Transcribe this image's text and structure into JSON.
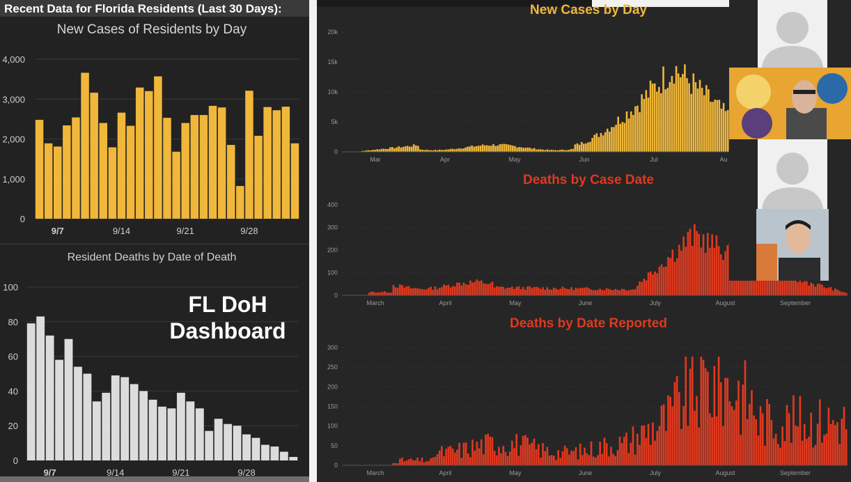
{
  "header": {
    "title": "Recent Data for Florida Residents (Last 30 Days):"
  },
  "overlay_label": {
    "line1": "FL DoH",
    "line2": "Dashboard"
  },
  "colors": {
    "gold": "#f0b73a",
    "light_bar": "#dcdcdc",
    "red": "#e0391f",
    "panel": "#222222"
  },
  "chart_data": [
    {
      "id": "new-cases-residents",
      "type": "bar",
      "title": "New Cases of Residents by Day",
      "ylim": [
        0,
        4000
      ],
      "yticks": [
        "0",
        "1,000",
        "2,000",
        "3,000",
        "4,000"
      ],
      "xticks": [
        {
          "label": "9/7",
          "index": 2
        },
        {
          "label": "9/14",
          "index": 9
        },
        {
          "label": "9/21",
          "index": 16
        },
        {
          "label": "9/28",
          "index": 23
        }
      ],
      "values": [
        2480,
        1890,
        1810,
        2340,
        2540,
        3660,
        3160,
        2400,
        1790,
        2660,
        2330,
        3290,
        3200,
        3570,
        2530,
        1680,
        2400,
        2600,
        2600,
        2830,
        2790,
        1850,
        820,
        3210,
        2080,
        2800,
        2720,
        2810,
        1890
      ],
      "color": "#f0b73a"
    },
    {
      "id": "resident-deaths",
      "type": "bar",
      "title": "Resident Deaths by Date of Death",
      "ylim": [
        0,
        100
      ],
      "yticks": [
        "0",
        "20",
        "40",
        "60",
        "80",
        "100"
      ],
      "xticks": [
        {
          "label": "9/7",
          "index": 2
        },
        {
          "label": "9/14",
          "index": 9
        },
        {
          "label": "9/21",
          "index": 16
        },
        {
          "label": "9/28",
          "index": 23
        }
      ],
      "values": [
        79,
        83,
        72,
        58,
        70,
        54,
        50,
        34,
        39,
        49,
        48,
        44,
        40,
        35,
        31,
        30,
        39,
        34,
        30,
        17,
        24,
        21,
        20,
        15,
        13,
        9,
        8,
        5,
        2
      ],
      "color": "#dcdcdc"
    },
    {
      "id": "new-cases-by-day",
      "type": "bar",
      "title": "New Cases by Day",
      "ylim": [
        0,
        20000
      ],
      "yticks": [
        "0",
        "5k",
        "10k",
        "15k",
        "20k"
      ],
      "xticks": [
        "Mar",
        "Apr",
        "May",
        "Jun",
        "Jul",
        "Au"
      ],
      "series_shape": "cases",
      "peak": 15300,
      "color": "#f0b73a"
    },
    {
      "id": "deaths-by-case-date",
      "type": "bar",
      "title": "Deaths by Case Date",
      "ylim": [
        0,
        400
      ],
      "yticks": [
        "0",
        "100",
        "200",
        "300",
        "400"
      ],
      "xticks": [
        "March",
        "April",
        "May",
        "June",
        "July",
        "August",
        "September"
      ],
      "series_shape": "case-deaths",
      "peak": 315,
      "color": "#e0391f"
    },
    {
      "id": "deaths-by-date-reported",
      "type": "bar",
      "title": "Deaths by Date Reported",
      "ylim": [
        0,
        300
      ],
      "yticks": [
        "0",
        "50",
        "100",
        "150",
        "200",
        "250",
        "300"
      ],
      "xticks": [
        "March",
        "April",
        "May",
        "June",
        "July",
        "August",
        "September"
      ],
      "series_shape": "reported-deaths",
      "peak": 277,
      "color": "#e0391f"
    }
  ]
}
